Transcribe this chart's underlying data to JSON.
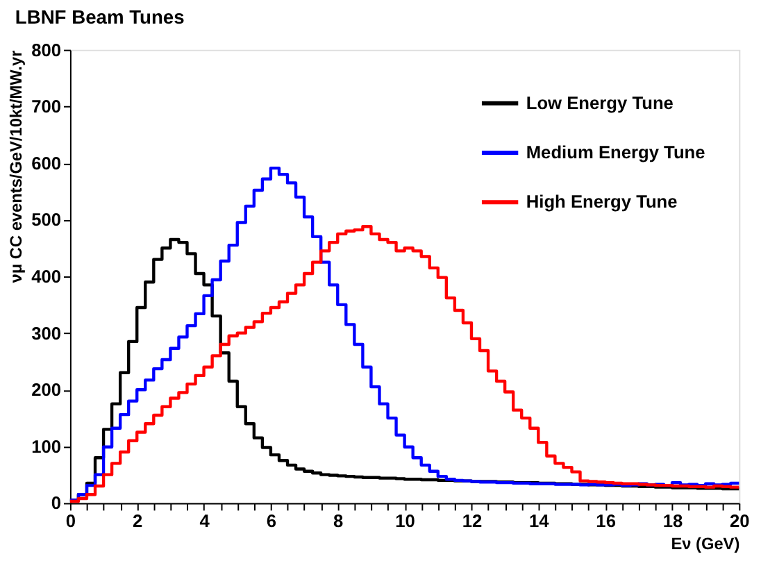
{
  "chart_data": {
    "type": "histogram",
    "title": "LBNF Beam Tunes",
    "xlabel": "Eν (GeV)",
    "ylabel": "νμ CC events/GeV/10kt/MW.yr",
    "bins": [
      0,
      0.25,
      0.5,
      0.75,
      1,
      1.25,
      1.5,
      1.75,
      2,
      2.25,
      2.5,
      2.75,
      3,
      3.25,
      3.5,
      3.75,
      4,
      4.25,
      4.5,
      4.75,
      5,
      5.25,
      5.5,
      5.75,
      6,
      6.25,
      6.5,
      6.75,
      7,
      7.25,
      7.5,
      7.75,
      8,
      8.25,
      8.5,
      8.75,
      9,
      9.25,
      9.5,
      9.75,
      10,
      10.25,
      10.5,
      10.75,
      11,
      11.25,
      11.5,
      11.75,
      12,
      12.25,
      12.5,
      12.75,
      13,
      13.25,
      13.5,
      13.75,
      14,
      14.25,
      14.5,
      14.75,
      15,
      15.25,
      15.5,
      15.75,
      16,
      16.25,
      16.5,
      16.75,
      17,
      17.25,
      17.5,
      17.75,
      18,
      18.25,
      18.5,
      18.75,
      19,
      19.25,
      19.5,
      19.75,
      20
    ],
    "series": [
      {
        "name": "Low Energy Tune",
        "color": "#000000",
        "values": [
          5,
          15,
          35,
          80,
          130,
          175,
          230,
          285,
          345,
          390,
          430,
          450,
          465,
          460,
          440,
          405,
          385,
          330,
          265,
          215,
          170,
          140,
          115,
          98,
          85,
          75,
          67,
          60,
          56,
          53,
          50,
          49,
          48,
          47,
          46,
          45,
          45,
          44,
          44,
          43,
          42,
          42,
          41,
          41,
          40,
          40,
          39,
          39,
          38,
          38,
          38,
          37,
          37,
          36,
          36,
          36,
          35,
          35,
          34,
          34,
          33,
          33,
          32,
          32,
          31,
          31,
          30,
          30,
          29,
          29,
          28,
          28,
          27,
          27,
          27,
          26,
          26,
          26,
          25,
          25
        ]
      },
      {
        "name": "Medium Energy Tune",
        "color": "#0000ff",
        "values": [
          5,
          15,
          31,
          50,
          99,
          132,
          156,
          180,
          200,
          217,
          237,
          253,
          273,
          293,
          313,
          334,
          366,
          394,
          427,
          455,
          495,
          524,
          552,
          572,
          591,
          580,
          565,
          540,
          505,
          470,
          425,
          385,
          350,
          315,
          280,
          240,
          205,
          175,
          150,
          120,
          99,
          80,
          67,
          56,
          47,
          42,
          40,
          39,
          38,
          37,
          37,
          36,
          36,
          35,
          35,
          34,
          34,
          34,
          33,
          33,
          33,
          32,
          33,
          32,
          32,
          33,
          31,
          32,
          34,
          32,
          33,
          31,
          36,
          32,
          33,
          31,
          34,
          32,
          33,
          35
        ]
      },
      {
        "name": "High Energy Tune",
        "color": "#ff0000",
        "values": [
          3,
          8,
          15,
          30,
          50,
          70,
          90,
          110,
          125,
          140,
          155,
          170,
          185,
          195,
          210,
          225,
          240,
          260,
          280,
          295,
          300,
          310,
          320,
          335,
          345,
          355,
          370,
          385,
          405,
          425,
          445,
          460,
          475,
          480,
          482,
          488,
          475,
          465,
          460,
          445,
          450,
          445,
          435,
          415,
          398,
          362,
          340,
          318,
          290,
          269,
          233,
          215,
          196,
          164,
          150,
          132,
          107,
          83,
          70,
          63,
          55,
          39,
          38,
          37,
          36,
          35,
          34,
          34,
          33,
          32,
          31,
          31,
          30,
          30,
          29,
          29,
          28,
          30,
          29,
          28
        ]
      }
    ],
    "xlim": [
      0,
      20
    ],
    "ylim": [
      0,
      800
    ],
    "xticks": [
      0,
      {
        "value": 0.5,
        "label": null
      },
      {
        "value": 1,
        "label": null
      },
      {
        "value": 1.5,
        "label": null
      },
      2,
      {
        "value": 2.5,
        "label": null
      },
      {
        "value": 3,
        "label": null
      },
      {
        "value": 3.5,
        "label": null
      },
      4,
      {
        "value": 4.5,
        "label": null
      },
      {
        "value": 5,
        "label": null
      },
      {
        "value": 5.5,
        "label": null
      },
      6,
      {
        "value": 6.5,
        "label": null
      },
      {
        "value": 7,
        "label": null
      },
      {
        "value": 7.5,
        "label": null
      },
      8,
      {
        "value": 8.5,
        "label": null
      },
      {
        "value": 9,
        "label": null
      },
      {
        "value": 9.5,
        "label": null
      },
      10,
      {
        "value": 10.5,
        "label": null
      },
      {
        "value": 11,
        "label": null
      },
      {
        "value": 11.5,
        "label": null
      },
      12,
      {
        "value": 12.5,
        "label": null
      },
      {
        "value": 13,
        "label": null
      },
      {
        "value": 13.5,
        "label": null
      },
      14,
      {
        "value": 14.5,
        "label": null
      },
      {
        "value": 15,
        "label": null
      },
      {
        "value": 15.5,
        "label": null
      },
      16,
      {
        "value": 16.5,
        "label": null
      },
      {
        "value": 17,
        "label": null
      },
      {
        "value": 17.5,
        "label": null
      },
      18,
      {
        "value": 18.5,
        "label": null
      },
      {
        "value": 19,
        "label": null
      },
      {
        "value": 19.5,
        "label": null
      },
      20
    ],
    "yticks": [
      0,
      100,
      200,
      300,
      400,
      500,
      600,
      700,
      800
    ],
    "legend": "top right",
    "grid": false
  }
}
